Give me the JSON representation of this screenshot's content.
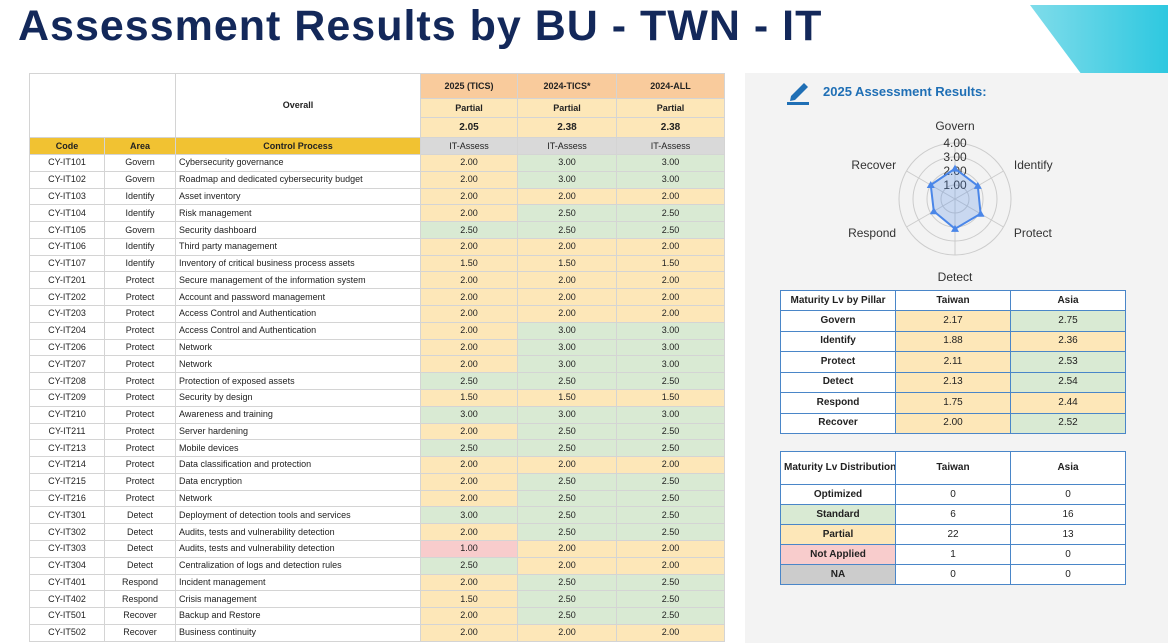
{
  "title": "Assessment Results by BU - TWN - IT",
  "main_table": {
    "overall_label": "Overall",
    "headers": [
      "Code",
      "Area",
      "Control Process"
    ],
    "columns": [
      {
        "name": "2025 (TICS)",
        "status": "Partial",
        "score": "2.05",
        "method": "IT-Assess"
      },
      {
        "name": "2024-TICS*",
        "status": "Partial",
        "score": "2.38",
        "method": "IT-Assess"
      },
      {
        "name": "2024-ALL",
        "status": "Partial",
        "score": "2.38",
        "method": "IT-Assess"
      }
    ],
    "rows": [
      [
        "CY-IT101",
        "Govern",
        "Cybersecurity governance",
        "2.00",
        "3.00",
        "3.00"
      ],
      [
        "CY-IT102",
        "Govern",
        "Roadmap and dedicated cybersecurity budget",
        "2.00",
        "3.00",
        "3.00"
      ],
      [
        "CY-IT103",
        "Identify",
        "Asset inventory",
        "2.00",
        "2.00",
        "2.00"
      ],
      [
        "CY-IT104",
        "Identify",
        "Risk management",
        "2.00",
        "2.50",
        "2.50"
      ],
      [
        "CY-IT105",
        "Govern",
        "Security dashboard",
        "2.50",
        "2.50",
        "2.50"
      ],
      [
        "CY-IT106",
        "Identify",
        "Third party management",
        "2.00",
        "2.00",
        "2.00"
      ],
      [
        "CY-IT107",
        "Identify",
        "Inventory of critical business process assets",
        "1.50",
        "1.50",
        "1.50"
      ],
      [
        "CY-IT201",
        "Protect",
        "Secure management of the information system",
        "2.00",
        "2.00",
        "2.00"
      ],
      [
        "CY-IT202",
        "Protect",
        "Account and password management",
        "2.00",
        "2.00",
        "2.00"
      ],
      [
        "CY-IT203",
        "Protect",
        "Access Control and Authentication",
        "2.00",
        "2.00",
        "2.00"
      ],
      [
        "CY-IT204",
        "Protect",
        "Access Control and Authentication",
        "2.00",
        "3.00",
        "3.00"
      ],
      [
        "CY-IT206",
        "Protect",
        "Network",
        "2.00",
        "3.00",
        "3.00"
      ],
      [
        "CY-IT207",
        "Protect",
        "Network",
        "2.00",
        "3.00",
        "3.00"
      ],
      [
        "CY-IT208",
        "Protect",
        "Protection of exposed assets",
        "2.50",
        "2.50",
        "2.50"
      ],
      [
        "CY-IT209",
        "Protect",
        "Security by design",
        "1.50",
        "1.50",
        "1.50"
      ],
      [
        "CY-IT210",
        "Protect",
        "Awareness and training",
        "3.00",
        "3.00",
        "3.00"
      ],
      [
        "CY-IT211",
        "Protect",
        "Server hardening",
        "2.00",
        "2.50",
        "2.50"
      ],
      [
        "CY-IT213",
        "Protect",
        "Mobile devices",
        "2.50",
        "2.50",
        "2.50"
      ],
      [
        "CY-IT214",
        "Protect",
        "Data classification and protection",
        "2.00",
        "2.00",
        "2.00"
      ],
      [
        "CY-IT215",
        "Protect",
        "Data encryption",
        "2.00",
        "2.50",
        "2.50"
      ],
      [
        "CY-IT216",
        "Protect",
        "Network",
        "2.00",
        "2.50",
        "2.50"
      ],
      [
        "CY-IT301",
        "Detect",
        "Deployment of detection tools and services",
        "3.00",
        "2.50",
        "2.50"
      ],
      [
        "CY-IT302",
        "Detect",
        "Audits, tests and vulnerability detection",
        "2.00",
        "2.50",
        "2.50"
      ],
      [
        "CY-IT303",
        "Detect",
        "Audits, tests and vulnerability detection",
        "1.00",
        "2.00",
        "2.00"
      ],
      [
        "CY-IT304",
        "Detect",
        "Centralization of logs and detection rules",
        "2.50",
        "2.00",
        "2.00"
      ],
      [
        "CY-IT401",
        "Respond",
        "Incident management",
        "2.00",
        "2.50",
        "2.50"
      ],
      [
        "CY-IT402",
        "Respond",
        "Crisis management",
        "1.50",
        "2.50",
        "2.50"
      ],
      [
        "CY-IT501",
        "Recover",
        "Backup and Restore",
        "2.00",
        "2.50",
        "2.50"
      ],
      [
        "CY-IT502",
        "Recover",
        "Business continuity",
        "2.00",
        "2.00",
        "2.00"
      ]
    ]
  },
  "radar": {
    "title": "2025 Assessment Results:",
    "rlim": [
      0,
      4
    ],
    "color": "#4a86e8",
    "rticks": [
      {
        "value": 1,
        "label": "1.00"
      },
      {
        "value": 2,
        "label": "2.00"
      },
      {
        "value": 3,
        "label": "3.00"
      },
      {
        "value": 4,
        "label": "4.00"
      }
    ]
  },
  "pillar_table": {
    "header": [
      "Maturity Lv by Pillar",
      "Taiwan",
      "Asia"
    ],
    "rows": [
      [
        "Govern",
        "2.17",
        "2.75"
      ],
      [
        "Identify",
        "1.88",
        "2.36"
      ],
      [
        "Protect",
        "2.11",
        "2.53"
      ],
      [
        "Detect",
        "2.13",
        "2.54"
      ],
      [
        "Respond",
        "1.75",
        "2.44"
      ],
      [
        "Recover",
        "2.00",
        "2.52"
      ]
    ]
  },
  "distribution_table": {
    "header": [
      "Maturity Lv Distribution",
      "Taiwan",
      "Asia"
    ],
    "rows": [
      {
        "label": "Optimized",
        "color": "#ffffff",
        "values": [
          "0",
          "0"
        ]
      },
      {
        "label": "Standard",
        "color": "#d9ead3",
        "values": [
          "6",
          "16"
        ]
      },
      {
        "label": "Partial",
        "color": "#fde7b8",
        "values": [
          "22",
          "13"
        ]
      },
      {
        "label": "Not Applied",
        "color": "#f8cccc",
        "values": [
          "1",
          "0"
        ]
      },
      {
        "label": "NA",
        "color": "#cccccc",
        "values": [
          "0",
          "0"
        ]
      }
    ]
  }
}
